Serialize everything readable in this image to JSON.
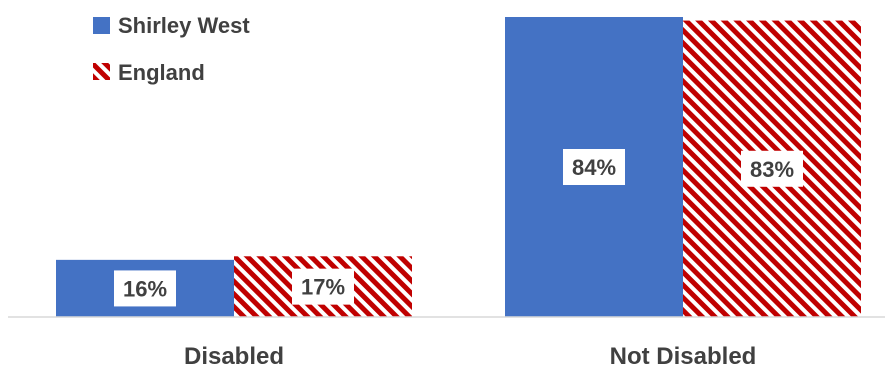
{
  "chart_data": {
    "type": "bar",
    "categories": [
      "Disabled",
      "Not Disabled"
    ],
    "series": [
      {
        "name": "Shirley West",
        "values": [
          16,
          84
        ],
        "labels": [
          "16%",
          "84%"
        ],
        "color": "#4472C4",
        "fill": "solid"
      },
      {
        "name": "England",
        "values": [
          17,
          83
        ],
        "labels": [
          "17%",
          "83%"
        ],
        "color": "#C00000",
        "fill": "diagonal-stripes"
      }
    ],
    "title": "",
    "xlabel": "",
    "ylabel": "",
    "ylim": [
      0,
      84
    ],
    "grid": false,
    "legend": "top-left",
    "axis_line_color": "#D9D9D9"
  }
}
